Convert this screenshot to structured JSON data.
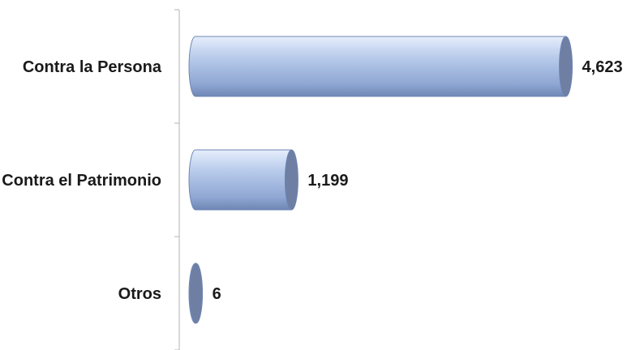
{
  "chart_data": {
    "type": "bar",
    "orientation": "horizontal",
    "style": "3d-cylinder",
    "categories": [
      "Contra la Persona",
      "Contra el Patrimonio",
      "Otros"
    ],
    "values": [
      4623,
      1199,
      6
    ],
    "data_labels": [
      "4,623",
      "1,199",
      "6"
    ],
    "xlim": [
      0,
      4800
    ],
    "grid": false,
    "legend": "none",
    "colors": {
      "bar_light": "#e6eefc",
      "bar_mid": "#b8cbeb",
      "bar_dark": "#8ea6d2",
      "bar_edge": "#6f86b4",
      "cap_face": "#6e7fa3",
      "axis": "#b3b3b3"
    }
  }
}
